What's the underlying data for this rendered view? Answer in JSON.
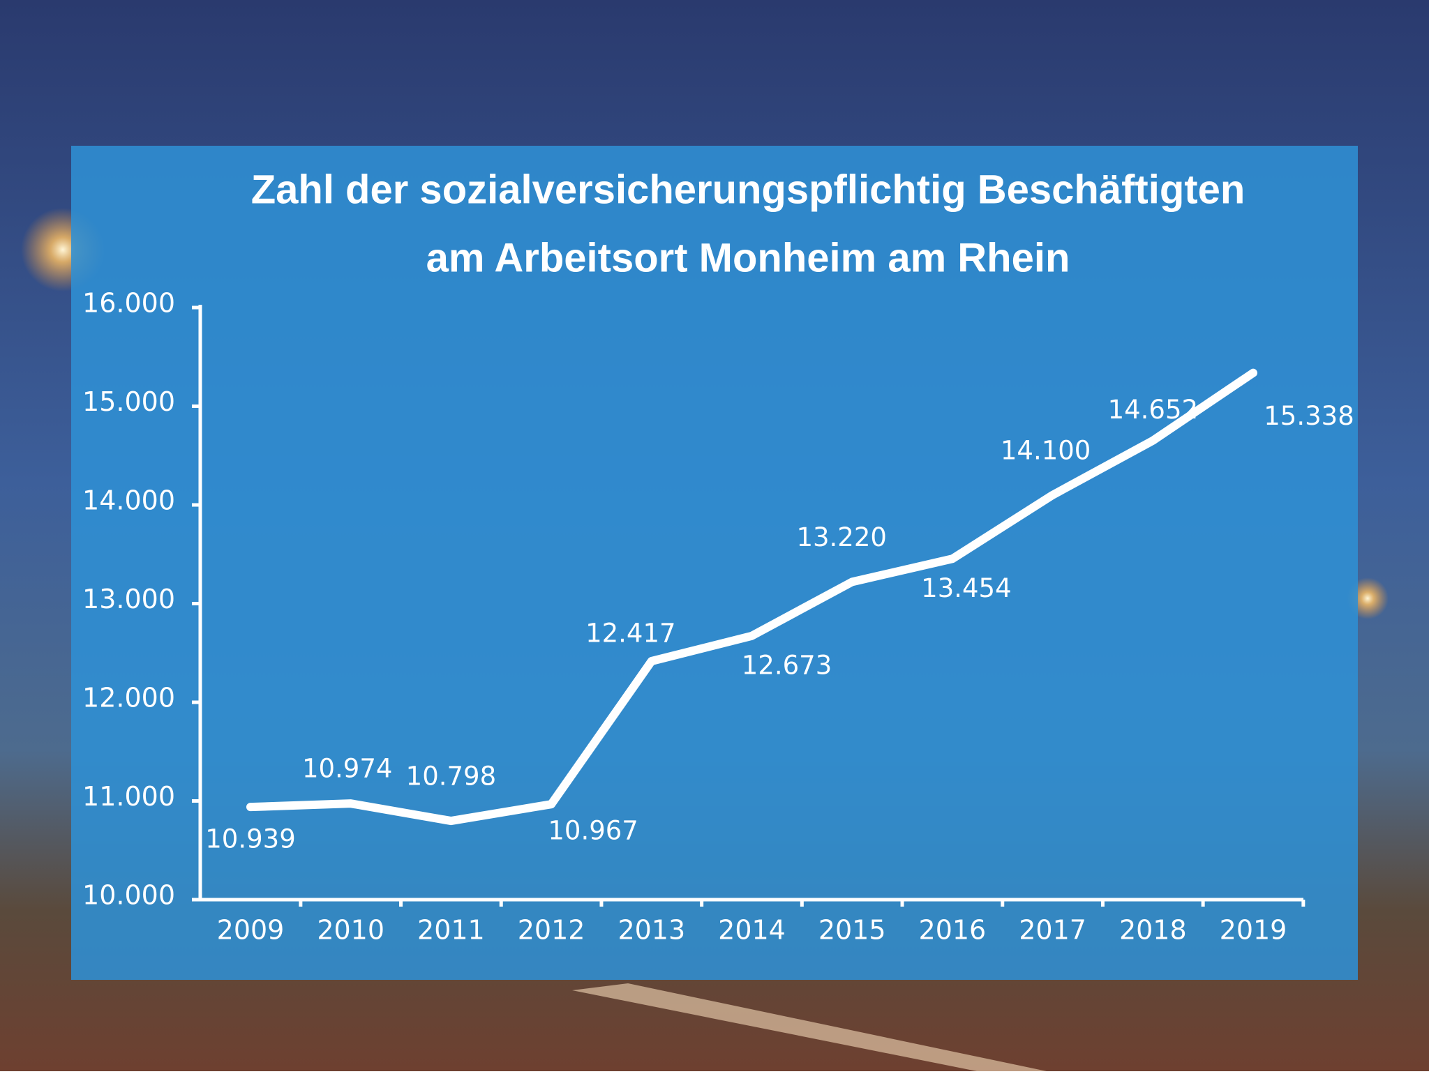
{
  "chart_data": {
    "type": "line",
    "title": [
      "Zahl der sozialversicherungspflichtig Beschäftigten",
      "am Arbeitsort Monheim am Rhein"
    ],
    "categories": [
      "2009",
      "2010",
      "2011",
      "2012",
      "2013",
      "2014",
      "2015",
      "2016",
      "2017",
      "2018",
      "2019"
    ],
    "values": [
      10939,
      10974,
      10798,
      10967,
      12417,
      12673,
      13220,
      13454,
      14100,
      14652,
      15338
    ],
    "value_labels": [
      "10.939",
      "10.974",
      "10.798",
      "10.967",
      "12.417",
      "12.673",
      "13.220",
      "13.454",
      "14.100",
      "14.652",
      "15.338"
    ],
    "color": "#ffffff",
    "ylim": [
      10000,
      16000
    ],
    "yticks": [
      {
        "value": 10000,
        "label": "10.000"
      },
      {
        "value": 11000,
        "label": "11.000"
      },
      {
        "value": 12000,
        "label": "12.000"
      },
      {
        "value": 13000,
        "label": "13.000"
      },
      {
        "value": 14000,
        "label": "14.000"
      },
      {
        "value": 15000,
        "label": "15.000"
      },
      {
        "value": 16000,
        "label": "16.000"
      }
    ]
  }
}
